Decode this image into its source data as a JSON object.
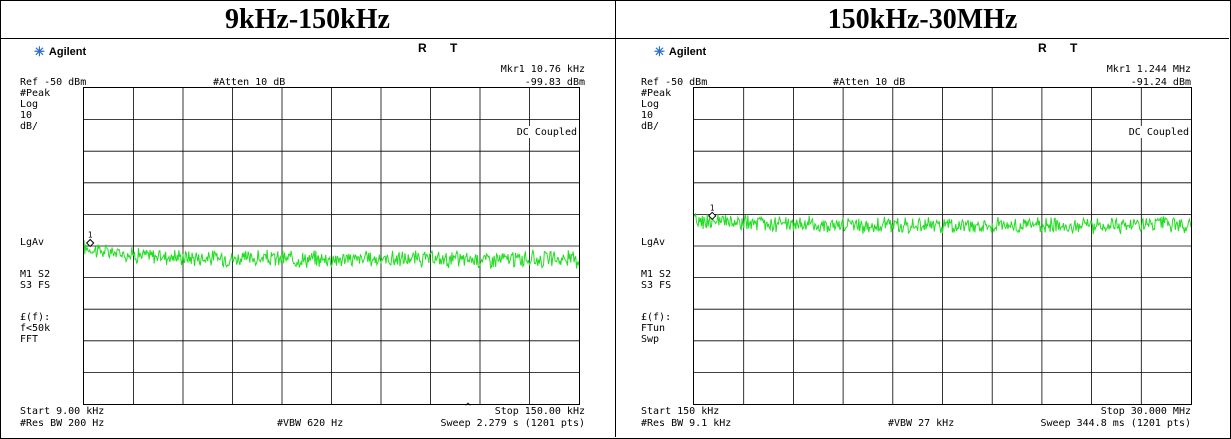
{
  "panels": [
    {
      "header": "9kHz-150kHz",
      "brand": "Agilent",
      "rt": "R T",
      "ref": "Ref -50 dBm",
      "atten": "#Atten 10 dB",
      "marker": "Mkr1  10.76 kHz",
      "marker_value": "-99.83 dBm",
      "side_labels": [
        "#Peak",
        "Log",
        "10",
        "dB/"
      ],
      "lgav": "LgAv",
      "m1": [
        "M1  S2",
        "S3  FS"
      ],
      "ef": [
        "£(f):",
        "f<50k",
        "FFT"
      ],
      "dc": "DC Coupled",
      "start": "Start 9.00 kHz",
      "stop": "Stop 150.00 kHz",
      "rbw": "#Res BW 200 Hz",
      "vbw": "#VBW 620 Hz",
      "sweep": "Sweep 2.279 s (1201 pts)",
      "caret": "^"
    },
    {
      "header": "150kHz-30MHz",
      "brand": "Agilent",
      "rt": "R T",
      "ref": "Ref -50 dBm",
      "atten": "#Atten 10 dB",
      "marker": "Mkr1  1.244 MHz",
      "marker_value": "-91.24 dBm",
      "side_labels": [
        "#Peak",
        "Log",
        "10",
        "dB/"
      ],
      "lgav": "LgAv",
      "m1": [
        "M1  S2",
        "S3  FS"
      ],
      "ef": [
        "£(f):",
        "FTun",
        "Swp"
      ],
      "dc": "DC Coupled",
      "start": "Start 150 kHz",
      "stop": "Stop 30.000 MHz",
      "rbw": "#Res BW 9.1 kHz",
      "vbw": "#VBW 27 kHz",
      "sweep": "Sweep 344.8 ms (1201 pts)",
      "caret": ""
    }
  ],
  "chart_data": [
    {
      "type": "line",
      "title": "9kHz-150kHz",
      "xlabel": "",
      "ylabel": "",
      "xlim": [
        9.0,
        150.0
      ],
      "ylim": [
        -150,
        -50
      ],
      "x_unit": "kHz",
      "y_unit": "dBm",
      "grid": true,
      "color": "#22dd22",
      "series": [
        {
          "x": [
            9,
            15,
            22,
            30,
            40,
            50,
            60,
            70,
            80,
            90,
            100,
            110,
            120,
            130,
            140,
            150
          ],
          "y": [
            -100.5,
            -101.8,
            -102.6,
            -103.2,
            -103.6,
            -103.9,
            -104.0,
            -104.1,
            -104.1,
            -104.1,
            -104.1,
            -104.2,
            -104.2,
            -104.2,
            -104.1,
            -104.2
          ]
        }
      ],
      "marker": {
        "label": "1",
        "x": 10.76,
        "y": -99.83
      }
    },
    {
      "type": "line",
      "title": "150kHz-30MHz",
      "xlabel": "",
      "ylabel": "",
      "xlim": [
        0.15,
        30.0
      ],
      "ylim": [
        -150,
        -50
      ],
      "x_unit": "MHz",
      "y_unit": "dBm",
      "grid": true,
      "color": "#22dd22",
      "series": [
        {
          "x": [
            0.15,
            2,
            4,
            6,
            8,
            10,
            12,
            14,
            16,
            18,
            20,
            22,
            24,
            26,
            28,
            30
          ],
          "y": [
            -92.0,
            -92.6,
            -93.0,
            -93.2,
            -93.3,
            -93.4,
            -93.4,
            -93.5,
            -93.5,
            -93.5,
            -93.5,
            -93.4,
            -93.4,
            -93.4,
            -93.4,
            -93.5
          ]
        }
      ],
      "marker": {
        "label": "1",
        "x": 1.244,
        "y": -91.24
      }
    }
  ]
}
